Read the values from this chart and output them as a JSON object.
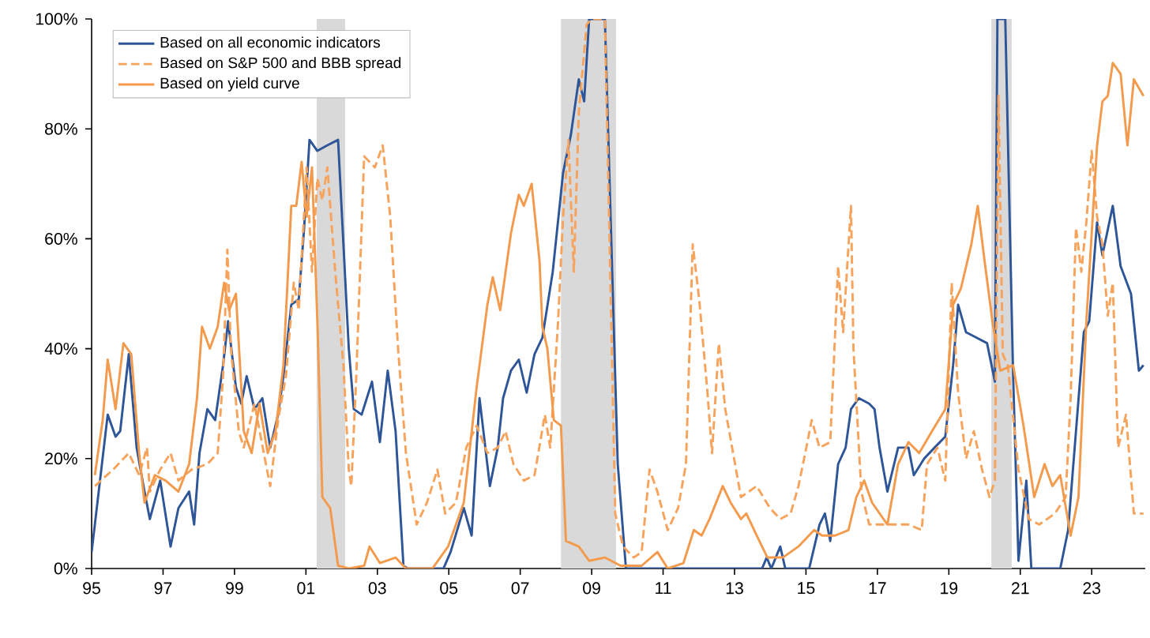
{
  "chart_data": {
    "type": "line",
    "xlim": [
      1995,
      2024.5
    ],
    "xticks": [
      {
        "value": 1995,
        "label": "95"
      },
      {
        "value": 1997,
        "label": "97"
      },
      {
        "value": 1999,
        "label": "99"
      },
      {
        "value": 2001,
        "label": "01"
      },
      {
        "value": 2003,
        "label": "03"
      },
      {
        "value": 2005,
        "label": "05"
      },
      {
        "value": 2007,
        "label": "07"
      },
      {
        "value": 2009,
        "label": "09"
      },
      {
        "value": 2011,
        "label": "11"
      },
      {
        "value": 2013,
        "label": "13"
      },
      {
        "value": 2015,
        "label": "15"
      },
      {
        "value": 2017,
        "label": "17"
      },
      {
        "value": 2019,
        "label": "19"
      },
      {
        "value": 2021,
        "label": "21"
      },
      {
        "value": 2023,
        "label": "23"
      }
    ],
    "ylim": [
      0,
      100
    ],
    "yticks": [
      {
        "value": 0,
        "label": "0%"
      },
      {
        "value": 20,
        "label": "20%"
      },
      {
        "value": 40,
        "label": "40%"
      },
      {
        "value": 60,
        "label": "60%"
      },
      {
        "value": 80,
        "label": "80%"
      },
      {
        "value": 100,
        "label": "100%"
      }
    ],
    "grid": false,
    "legend": "top left",
    "bands": [
      {
        "axis": "x",
        "from": 2001.3,
        "to": 2002.1,
        "color": "#d9d9d9"
      },
      {
        "axis": "x",
        "from": 2008.14,
        "to": 2009.68,
        "color": "#d9d9d9"
      },
      {
        "axis": "x",
        "from": 2020.19,
        "to": 2020.76,
        "color": "#d9d9d9"
      }
    ],
    "series": [
      {
        "name": "Based on all economic indicators",
        "color": "#2e5597",
        "line_style": "solid",
        "x": [
          1995.0,
          1995.45,
          1995.67,
          1995.8,
          1996.04,
          1996.26,
          1996.48,
          1996.63,
          1996.92,
          1997.21,
          1997.43,
          1997.73,
          1997.87,
          1998.02,
          1998.24,
          1998.46,
          1998.68,
          1998.82,
          1999.04,
          1999.19,
          1999.34,
          1999.56,
          1999.78,
          2000.0,
          2000.22,
          2000.37,
          2000.59,
          2000.8,
          2000.95,
          2001.1,
          2001.32,
          2001.6,
          2001.9,
          2002.2,
          2002.34,
          2002.56,
          2002.85,
          2003.07,
          2003.29,
          2003.51,
          2003.73,
          2003.85,
          2004.85,
          2005.05,
          2005.42,
          2005.64,
          2005.86,
          2006.15,
          2006.37,
          2006.52,
          2006.74,
          2006.96,
          2007.18,
          2007.4,
          2007.62,
          2007.91,
          2008.2,
          2008.42,
          2008.64,
          2008.79,
          2008.93,
          2009.37,
          2009.73,
          2009.96,
          2013.77,
          2013.9,
          2014.03,
          2014.28,
          2014.42,
          2015.09,
          2015.38,
          2015.53,
          2015.68,
          2015.9,
          2016.11,
          2016.26,
          2016.48,
          2016.77,
          2016.92,
          2017.06,
          2017.28,
          2017.58,
          2017.87,
          2018.02,
          2018.31,
          2018.6,
          2018.9,
          2019.12,
          2019.26,
          2019.48,
          2019.78,
          2020.07,
          2020.29,
          2020.36,
          2020.58,
          2020.8,
          2020.95,
          2021.17,
          2021.31,
          2022.12,
          2022.34,
          2022.56,
          2022.78,
          2022.93,
          2023.15,
          2023.3,
          2023.59,
          2023.81,
          2024.1,
          2024.32,
          2024.45
        ],
        "values": [
          3,
          28,
          24,
          25,
          39,
          22,
          14,
          9,
          16,
          4,
          11,
          14,
          8,
          21,
          29,
          27,
          37,
          45,
          33,
          30,
          35,
          29,
          31,
          22,
          28,
          35,
          48,
          49,
          62,
          78,
          76,
          77,
          78,
          40,
          29,
          28,
          34,
          23,
          36,
          25,
          0.5,
          0,
          0,
          3,
          11,
          6,
          31,
          15,
          22,
          31,
          36,
          38,
          32,
          39,
          42,
          54,
          72,
          79,
          89,
          85,
          100,
          100,
          19,
          0,
          0,
          2,
          0,
          4,
          0,
          0,
          8,
          10,
          5,
          19,
          22,
          29,
          31,
          30,
          29,
          22,
          14,
          22,
          22,
          17,
          20,
          22,
          24,
          37,
          48,
          43,
          42,
          41,
          34,
          100,
          100,
          35,
          1.4,
          16,
          0,
          0,
          7,
          25,
          43,
          45,
          63,
          57,
          66,
          55,
          50,
          36,
          37
        ]
      },
      {
        "name": "Based on S&P 500 and BBB spread",
        "color": "#f7a35c",
        "line_style": "dashed",
        "x": [
          1995.09,
          1995.6,
          1996.04,
          1996.33,
          1996.55,
          1996.63,
          1996.92,
          1997.21,
          1997.43,
          1997.8,
          1998.24,
          1998.53,
          1998.68,
          1998.8,
          1998.9,
          1999.12,
          1999.26,
          1999.56,
          1999.85,
          2000.0,
          2000.22,
          2000.44,
          2000.66,
          2000.8,
          2001.02,
          2001.17,
          2001.32,
          2001.46,
          2001.6,
          2001.82,
          2002.05,
          2002.2,
          2002.27,
          2002.41,
          2002.63,
          2002.93,
          2003.15,
          2003.36,
          2003.58,
          2003.8,
          2004.1,
          2004.39,
          2004.68,
          2004.9,
          2005.2,
          2005.49,
          2005.78,
          2006.08,
          2006.37,
          2006.59,
          2006.81,
          2007.1,
          2007.4,
          2007.69,
          2007.84,
          2008.06,
          2008.2,
          2008.35,
          2008.5,
          2008.64,
          2008.86,
          2009.0,
          2009.37,
          2009.66,
          2009.88,
          2010.18,
          2010.4,
          2010.62,
          2010.84,
          2011.13,
          2011.42,
          2011.64,
          2011.83,
          2012.01,
          2012.23,
          2012.37,
          2012.56,
          2012.74,
          2012.96,
          2013.18,
          2013.62,
          2013.99,
          2014.28,
          2014.57,
          2014.79,
          2015.01,
          2015.16,
          2015.38,
          2015.68,
          2015.9,
          2016.04,
          2016.26,
          2016.33,
          2016.55,
          2016.77,
          2017.14,
          2017.43,
          2017.87,
          2018.24,
          2018.39,
          2018.68,
          2018.9,
          2019.08,
          2019.26,
          2019.48,
          2019.7,
          2019.93,
          2020.14,
          2020.29,
          2020.39,
          2020.51,
          2020.65,
          2020.95,
          2021.24,
          2021.53,
          2021.97,
          2022.27,
          2022.41,
          2022.56,
          2022.71,
          2022.85,
          2023.0,
          2023.15,
          2023.3,
          2023.45,
          2023.59,
          2023.74,
          2023.96,
          2024.18,
          2024.45
        ],
        "values": [
          15,
          18,
          21,
          17,
          22,
          14,
          18,
          21,
          16,
          18,
          19,
          21,
          35,
          58,
          40,
          25,
          22,
          30,
          20,
          15,
          27,
          35,
          52,
          47,
          73,
          54,
          71,
          67,
          73,
          54,
          37,
          18,
          15,
          35,
          75,
          73,
          77,
          64,
          40,
          21,
          8,
          12,
          18,
          10,
          12,
          22,
          26,
          21,
          22,
          25,
          19,
          16,
          17,
          28,
          22,
          45,
          64,
          78,
          54,
          83,
          99,
          100,
          100,
          10,
          4,
          2,
          3,
          18,
          14,
          7,
          11,
          19,
          59,
          49,
          33,
          21,
          41,
          29,
          21,
          13,
          15,
          11,
          9,
          10,
          15,
          22,
          27,
          22,
          23,
          55,
          43,
          66,
          40,
          14,
          8,
          8,
          8,
          8,
          7,
          19,
          22,
          16,
          52,
          32,
          20,
          25,
          18,
          13,
          16,
          86,
          39,
          37,
          18,
          9,
          8,
          10,
          13,
          31,
          62,
          54,
          63,
          76,
          64,
          59,
          46,
          52,
          22,
          28,
          10,
          10
        ]
      },
      {
        "name": "Based on yield curve",
        "color": "#f39a4c",
        "line_style": "solid",
        "x": [
          1995.09,
          1995.31,
          1995.45,
          1995.67,
          1995.89,
          1996.11,
          1996.33,
          1996.48,
          1996.77,
          1997.07,
          1997.43,
          1997.73,
          1997.95,
          1998.09,
          1998.31,
          1998.53,
          1998.71,
          1998.85,
          1999.04,
          1999.26,
          1999.48,
          1999.7,
          1999.93,
          2000.15,
          2000.37,
          2000.59,
          2000.73,
          2000.88,
          2001.02,
          2001.17,
          2001.32,
          2001.46,
          2001.68,
          2001.9,
          2002.2,
          2002.63,
          2002.78,
          2003.07,
          2003.51,
          2003.8,
          2004.54,
          2004.98,
          2005.42,
          2005.78,
          2006.08,
          2006.23,
          2006.44,
          2006.74,
          2006.96,
          2007.1,
          2007.32,
          2007.54,
          2007.62,
          2007.76,
          2007.94,
          2008.14,
          2008.28,
          2008.64,
          2008.93,
          2009.37,
          2009.81,
          2010.4,
          2010.84,
          2011.13,
          2011.57,
          2011.86,
          2012.08,
          2012.3,
          2012.67,
          2012.89,
          2013.18,
          2013.33,
          2013.62,
          2013.92,
          2014.35,
          2014.79,
          2015.23,
          2015.45,
          2015.82,
          2016.19,
          2016.41,
          2016.63,
          2016.85,
          2017.28,
          2017.58,
          2017.87,
          2018.17,
          2018.53,
          2018.9,
          2019.12,
          2019.34,
          2019.63,
          2019.81,
          2020.0,
          2020.22,
          2020.44,
          2020.8,
          2021.09,
          2021.39,
          2021.68,
          2021.9,
          2022.12,
          2022.41,
          2022.63,
          2022.85,
          2023.15,
          2023.3,
          2023.45,
          2023.59,
          2023.81,
          2024.0,
          2024.18,
          2024.45
        ],
        "values": [
          17,
          27,
          38,
          29,
          41,
          39,
          21,
          12,
          17,
          16,
          14,
          19,
          31,
          44,
          40,
          44,
          52,
          47,
          50,
          25,
          21,
          30,
          21,
          25,
          37,
          66,
          66,
          74,
          64,
          73,
          45,
          13,
          11,
          0.5,
          0,
          0.5,
          4,
          1,
          2,
          0,
          0,
          4,
          12,
          33,
          48,
          53,
          47,
          61,
          68,
          66,
          70,
          56,
          44,
          40,
          27,
          26,
          5,
          4,
          1.4,
          2,
          0.5,
          0.5,
          3,
          0,
          1,
          7,
          6,
          9,
          15,
          12,
          9,
          10,
          6,
          2,
          2,
          4,
          7,
          6,
          6,
          7,
          13,
          16,
          12,
          8,
          19,
          23,
          21,
          25,
          29,
          48,
          51,
          59,
          66,
          56,
          45,
          36,
          37,
          26,
          13,
          19,
          15,
          17,
          6,
          13,
          45,
          77,
          85,
          86,
          92,
          90,
          77,
          89,
          86
        ]
      }
    ]
  }
}
